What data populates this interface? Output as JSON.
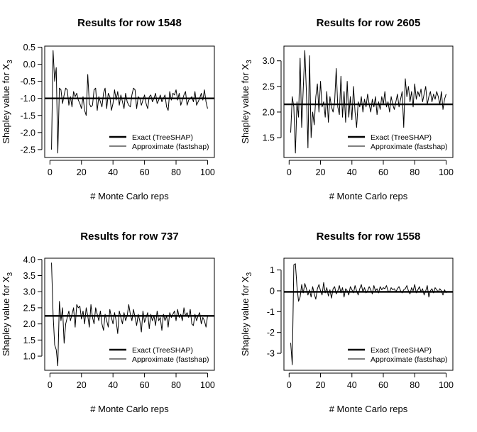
{
  "chart_data": [
    {
      "type": "line",
      "title": "Results for row 1548",
      "xlabel": "# Monte Carlo reps",
      "ylabel": "Shapley value for X",
      "ylabel_sub": "3",
      "xlim": [
        1,
        100
      ],
      "ylim": [
        -2.6,
        0.4
      ],
      "xticks": [
        0,
        20,
        40,
        60,
        80,
        100
      ],
      "yticks": [
        0.5,
        0.0,
        -0.5,
        -1.0,
        -1.5,
        -2.0,
        -2.5
      ],
      "ytick_labels": [
        "0.5",
        "0.0",
        "-0.5",
        "-1.0",
        "-1.5",
        "-2.0",
        "-2.5"
      ],
      "legend": {
        "position": "bottom-right",
        "entries": [
          "Exact (TreeSHAP)",
          "Approximate (fastshap)"
        ]
      },
      "exact": -1.0,
      "approx": [
        -2.5,
        0.4,
        -0.5,
        -0.1,
        -2.6,
        -0.7,
        -0.75,
        -1.15,
        -0.9,
        -0.7,
        -0.75,
        -1.2,
        -0.95,
        -1.25,
        -0.8,
        -0.95,
        -0.85,
        -1.05,
        -1.15,
        -1.3,
        -0.95,
        -1.35,
        -1.5,
        -0.3,
        -1.15,
        -1.25,
        -1.2,
        -0.75,
        -0.7,
        -1.35,
        -0.95,
        -1.1,
        -1.25,
        -0.85,
        -0.7,
        -1.3,
        -0.85,
        -0.95,
        -1.35,
        -1.15,
        -0.75,
        -1.05,
        -0.8,
        -1.2,
        -0.9,
        -1.1,
        -1.3,
        -0.85,
        -1.1,
        -1.2,
        -1.25,
        -0.9,
        -0.7,
        -0.75,
        -1.3,
        -0.95,
        -1.0,
        -1.2,
        -1.05,
        -0.9,
        -1.15,
        -1.3,
        -0.95,
        -0.9,
        -1.1,
        -1.0,
        -0.85,
        -1.15,
        -1.05,
        -0.9,
        -1.1,
        -1.0,
        -0.9,
        -1.25,
        -1.35,
        -0.8,
        -1.05,
        -0.85,
        -0.9,
        -0.75,
        -1.05,
        -0.85,
        -1.2,
        -1.05,
        -0.9,
        -0.8,
        -1.2,
        -1.05,
        -1.0,
        -0.95,
        -1.1,
        -0.8,
        -1.2,
        -1.1,
        -1.0,
        -0.85,
        -1.05,
        -0.75,
        -1.1,
        -1.3
      ]
    },
    {
      "type": "line",
      "title": "Results for row 2605",
      "xlabel": "# Monte Carlo reps",
      "ylabel": "Shapley value for X",
      "ylabel_sub": "3",
      "xlim": [
        1,
        100
      ],
      "ylim": [
        1.2,
        3.2
      ],
      "xticks": [
        0,
        20,
        40,
        60,
        80,
        100
      ],
      "yticks": [
        1.5,
        2.0,
        2.5,
        3.0
      ],
      "ytick_labels": [
        "1.5",
        "2.0",
        "2.5",
        "3.0"
      ],
      "legend": {
        "position": "bottom-right",
        "entries": [
          "Exact (TreeSHAP)",
          "Approximate (fastshap)"
        ]
      },
      "exact": 2.15,
      "approx": [
        1.6,
        2.3,
        2.1,
        1.2,
        2.2,
        1.9,
        3.05,
        1.7,
        2.45,
        3.2,
        2.4,
        1.3,
        3.1,
        1.5,
        2.0,
        1.75,
        2.3,
        2.55,
        2.0,
        2.6,
        2.1,
        2.2,
        1.9,
        2.4,
        1.8,
        2.3,
        2.1,
        2.0,
        2.2,
        2.85,
        2.1,
        1.95,
        2.7,
        1.9,
        2.4,
        1.8,
        2.6,
        1.9,
        2.3,
        1.85,
        2.5,
        2.0,
        1.7,
        2.2,
        2.1,
        2.3,
        2.0,
        2.25,
        2.1,
        2.35,
        2.15,
        2.0,
        2.25,
        2.1,
        2.3,
        1.95,
        2.2,
        2.05,
        2.3,
        2.15,
        2.4,
        2.1,
        2.2,
        2.0,
        2.3,
        2.15,
        2.05,
        2.2,
        2.35,
        2.1,
        2.25,
        2.4,
        1.7,
        2.65,
        2.3,
        2.5,
        2.2,
        2.4,
        2.1,
        2.55,
        2.25,
        2.4,
        2.3,
        2.45,
        2.2,
        2.35,
        2.5,
        2.15,
        2.3,
        2.4,
        2.2,
        2.35,
        2.25,
        2.4,
        2.3,
        2.15,
        2.4,
        2.05,
        2.25,
        2.35
      ]
    },
    {
      "type": "line",
      "title": "Results for row 737",
      "xlabel": "# Monte Carlo reps",
      "ylabel": "Shapley value for X",
      "ylabel_sub": "3",
      "xlim": [
        1,
        100
      ],
      "ylim": [
        0.7,
        3.9
      ],
      "xticks": [
        0,
        20,
        40,
        60,
        80,
        100
      ],
      "yticks": [
        1.0,
        1.5,
        2.0,
        2.5,
        3.0,
        3.5,
        4.0
      ],
      "ytick_labels": [
        "1.0",
        "1.5",
        "2.0",
        "2.5",
        "3.0",
        "3.5",
        "4.0"
      ],
      "legend": {
        "position": "bottom-right",
        "entries": [
          "Exact (TreeSHAP)",
          "Approximate (fastshap)"
        ]
      },
      "exact": 2.25,
      "approx": [
        3.9,
        2.3,
        1.35,
        1.2,
        0.7,
        2.7,
        2.1,
        2.5,
        1.4,
        2.0,
        2.2,
        2.4,
        2.1,
        2.3,
        2.5,
        1.9,
        2.6,
        2.5,
        2.55,
        2.15,
        2.4,
        2.0,
        2.5,
        2.25,
        1.9,
        2.6,
        2.2,
        2.0,
        2.5,
        2.3,
        2.1,
        2.4,
        2.0,
        1.8,
        2.3,
        2.1,
        1.9,
        2.45,
        2.2,
        2.0,
        2.35,
        2.1,
        1.7,
        2.4,
        2.2,
        2.0,
        2.35,
        2.1,
        2.25,
        2.6,
        2.3,
        2.1,
        2.45,
        2.2,
        1.95,
        2.3,
        2.1,
        1.75,
        2.4,
        2.05,
        2.2,
        2.35,
        1.85,
        2.3,
        2.1,
        2.25,
        1.95,
        2.4,
        2.1,
        2.2,
        1.8,
        2.3,
        2.1,
        2.25,
        1.9,
        2.35,
        2.2,
        2.3,
        2.4,
        2.1,
        2.45,
        2.2,
        2.3,
        2.1,
        2.5,
        2.25,
        2.35,
        2.2,
        2.45,
        2.0,
        1.95,
        2.3,
        2.1,
        2.25,
        2.35,
        2.0,
        2.2,
        2.1,
        1.9,
        2.25
      ]
    },
    {
      "type": "line",
      "title": "Results for row 1558",
      "xlabel": "# Monte Carlo reps",
      "ylabel": "Shapley value for X",
      "ylabel_sub": "3",
      "xlim": [
        1,
        100
      ],
      "ylim": [
        -3.6,
        1.35
      ],
      "xticks": [
        0,
        20,
        40,
        60,
        80,
        100
      ],
      "yticks": [
        1,
        0,
        -1,
        -2,
        -3
      ],
      "ytick_labels": [
        "1",
        "0",
        "-1",
        "-2",
        "-3"
      ],
      "legend": {
        "position": "bottom-right",
        "entries": [
          "Exact (TreeSHAP)",
          "Approximate (fastshap)"
        ]
      },
      "exact": -0.05,
      "approx": [
        -2.5,
        -3.55,
        1.25,
        1.3,
        0.2,
        -0.5,
        -0.3,
        0.3,
        -0.1,
        0.35,
        0.1,
        -0.2,
        0.05,
        -0.3,
        0.2,
        -0.15,
        -0.4,
        0.1,
        0.3,
        0.0,
        -0.2,
        0.4,
        -0.1,
        0.15,
        -0.25,
        0.05,
        -0.35,
        0.1,
        0.2,
        -0.15,
        0.0,
        0.25,
        -0.1,
        0.15,
        -0.3,
        0.1,
        0.0,
        -0.2,
        0.2,
        0.05,
        -0.1,
        0.25,
        0.0,
        -0.2,
        0.1,
        0.3,
        -0.05,
        0.15,
        -0.1,
        0.0,
        0.2,
        0.05,
        -0.15,
        0.25,
        0.0,
        0.1,
        -0.1,
        0.2,
        0.05,
        0.15,
        0.1,
        0.25,
        0.0,
        -0.05,
        0.15,
        0.05,
        0.1,
        -0.05,
        0.1,
        0.2,
        0.0,
        -0.1,
        0.05,
        0.1,
        0.25,
        0.0,
        -0.15,
        0.15,
        0.0,
        0.3,
        -0.1,
        0.05,
        0.2,
        -0.05,
        0.1,
        -0.2,
        0.0,
        0.25,
        -0.3,
        0.0,
        0.1,
        -0.1,
        0.15,
        0.05,
        -0.05,
        0.1,
        0.0,
        -0.2,
        0.05,
        -0.1
      ]
    }
  ]
}
